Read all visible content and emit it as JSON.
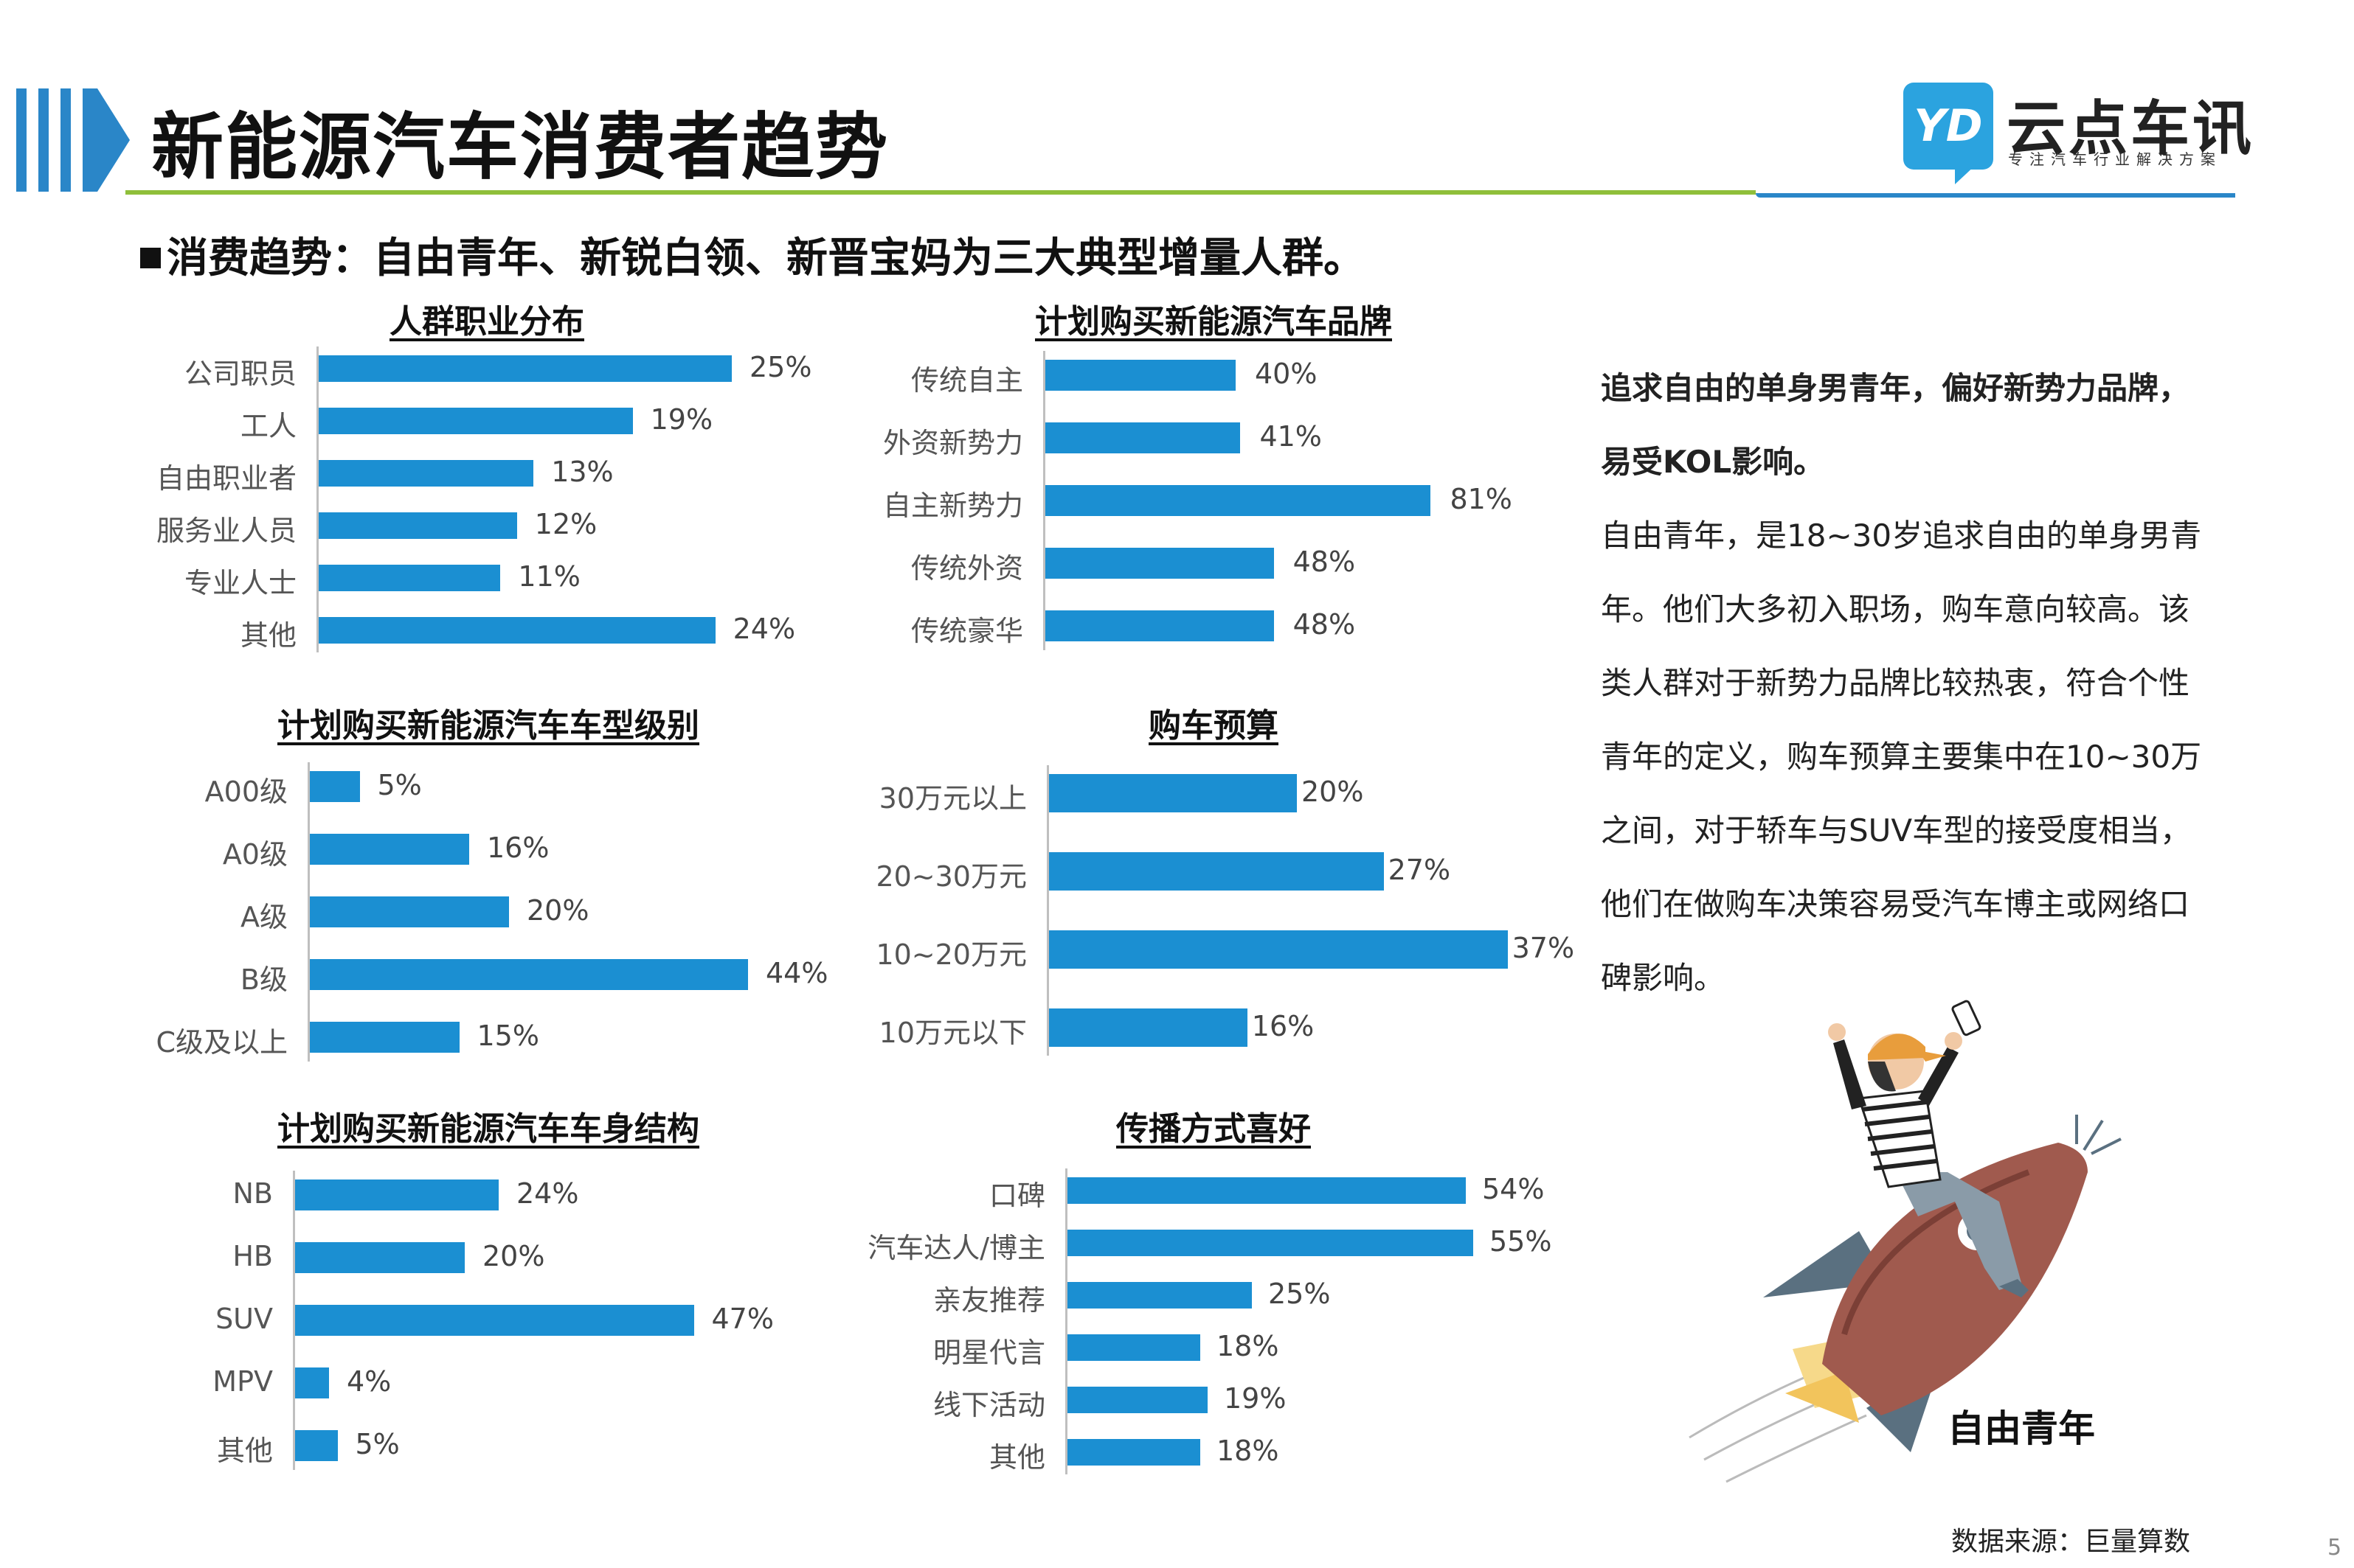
{
  "header": {
    "title": "新能源汽车消费者趋势",
    "logo_mark": "YD",
    "logo_name": "云点车讯",
    "logo_tagline": "专注汽车行业解决方案"
  },
  "subheading": "消费趋势：自由青年、新锐白领、新晋宝妈为三大典型增量人群。",
  "chart_data": [
    {
      "type": "bar",
      "title": "人群职业分布",
      "categories": [
        "公司职员",
        "工人",
        "自由职业者",
        "服务业人员",
        "专业人士",
        "其他"
      ],
      "values": [
        25,
        19,
        13,
        12,
        11,
        24
      ],
      "labels": [
        "25%",
        "19%",
        "13%",
        "12%",
        "11%",
        "24%"
      ],
      "unit": "%",
      "color": "#1b8fd2"
    },
    {
      "type": "bar",
      "title": "计划购买新能源汽车品牌",
      "categories": [
        "传统自主",
        "外资新势力",
        "自主新势力",
        "传统外资",
        "传统豪华"
      ],
      "values": [
        40,
        41,
        81,
        48,
        48
      ],
      "labels": [
        "40%",
        "41%",
        "81%",
        "48%",
        "48%"
      ],
      "unit": "%",
      "color": "#1b8fd2"
    },
    {
      "type": "bar",
      "title": "计划购买新能源汽车车型级别",
      "categories": [
        "A00级",
        "A0级",
        "A级",
        "B级",
        "C级及以上"
      ],
      "values": [
        5,
        16,
        20,
        44,
        15
      ],
      "labels": [
        "5%",
        "16%",
        "20%",
        "44%",
        "15%"
      ],
      "unit": "%",
      "color": "#1b8fd2"
    },
    {
      "type": "bar",
      "title": "购车预算",
      "categories": [
        "30万元以上",
        "20~30万元",
        "10~20万元",
        "10万元以下"
      ],
      "values": [
        20,
        27,
        37,
        16
      ],
      "labels": [
        "20%",
        "27%",
        "37%",
        "16%"
      ],
      "unit": "%",
      "color": "#1b8fd2"
    },
    {
      "type": "bar",
      "title": "计划购买新能源汽车车身结构",
      "categories": [
        "NB",
        "HB",
        "SUV",
        "MPV",
        "其他"
      ],
      "values": [
        24,
        20,
        47,
        4,
        5
      ],
      "labels": [
        "24%",
        "20%",
        "47%",
        "4%",
        "5%"
      ],
      "unit": "%",
      "color": "#1b8fd2"
    },
    {
      "type": "bar",
      "title": "传播方式喜好",
      "categories": [
        "口碑",
        "汽车达人/博主",
        "亲友推荐",
        "明星代言",
        "线下活动",
        "其他"
      ],
      "values": [
        54,
        55,
        25,
        18,
        19,
        18
      ],
      "labels": [
        "54%",
        "55%",
        "25%",
        "18%",
        "19%",
        "18%"
      ],
      "unit": "%",
      "color": "#1b8fd2"
    }
  ],
  "persona": {
    "headline_1": "追求自由的单身男青年，偏好新势力品牌，",
    "headline_2": "易受KOL影响。",
    "body": "自由青年，是18~30岁追求自由的单身男青年。他们大多初入职场，购车意向较高。该类人群对于新势力品牌比较热衷，符合个性青年的定义，购车预算主要集中在10~30万之间，对于轿车与SUV车型的接受度相当，他们在做购车决策容易受汽车博主或网络口碑影响。",
    "label": "自由青年"
  },
  "footer": {
    "source": "数据来源：巨量算数",
    "page_number": "5"
  }
}
